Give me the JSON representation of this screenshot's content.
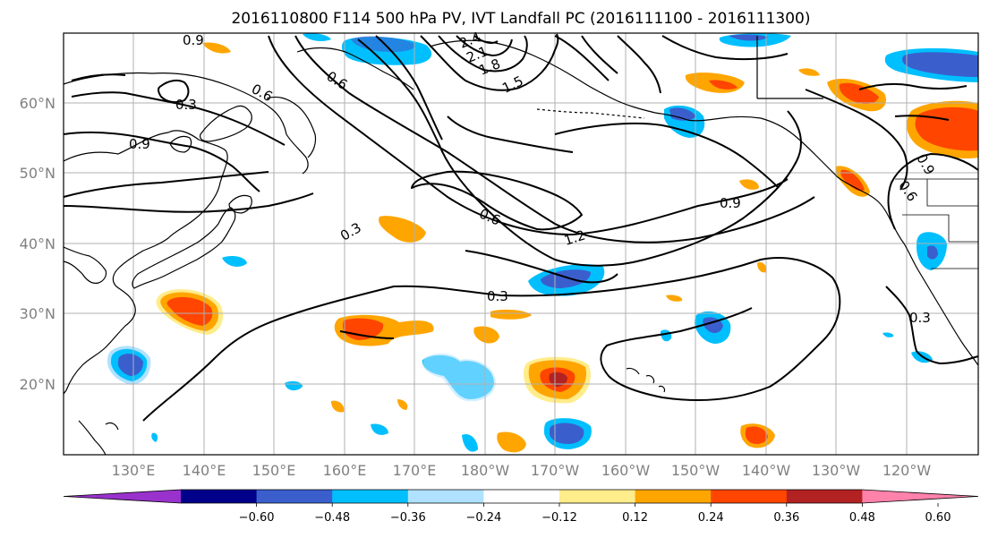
{
  "title": "2016110800 F114 500 hPa PV, IVT Landfall PC (2016111100 - 2016111300)",
  "map": {
    "lat_labels": [
      "20°N",
      "30°N",
      "40°N",
      "50°N",
      "60°N"
    ],
    "lon_labels": [
      "130°E",
      "140°E",
      "150°E",
      "160°E",
      "170°E",
      "180°W",
      "170°W",
      "160°W",
      "150°W",
      "140°W",
      "130°W",
      "120°W"
    ],
    "contour_labels": [
      "0.9",
      "0.3",
      "0.9",
      "0.6",
      "0.6",
      "2.4",
      "2.1",
      "1.8",
      "1.5",
      "0.3",
      "0.6",
      "1.2",
      "0.9",
      "0.3",
      "0.9",
      "0.6",
      "0.3"
    ]
  },
  "colorbar": {
    "tick_labels": [
      "−0.60",
      "−0.48",
      "−0.36",
      "−0.24",
      "−0.12",
      "0.12",
      "0.24",
      "0.36",
      "0.48",
      "0.60"
    ],
    "colors": [
      "#9932cc",
      "#00008b",
      "#3a5fcd",
      "#00bfff",
      "#b0e2ff",
      "#ffffff",
      "#ffec8b",
      "#ffa500",
      "#ff4500",
      "#b22222",
      "#ff82ab"
    ]
  }
}
